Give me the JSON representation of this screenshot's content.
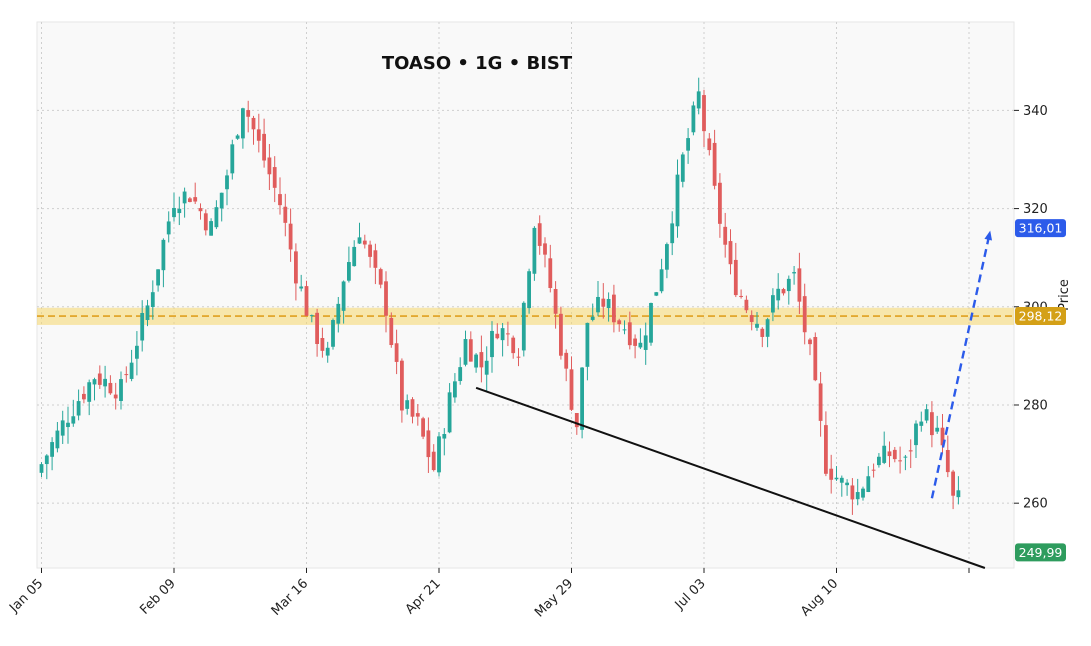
{
  "chart_data": {
    "type": "candlestick",
    "title": "TOASO • 1G • BIST",
    "ylabel": "Price",
    "ylim": [
      246.8,
      358
    ],
    "y_ticks": [
      260,
      280,
      300,
      320,
      340
    ],
    "x_tick_labels": [
      {
        "index": 0,
        "label": "Jan 05"
      },
      {
        "index": 25,
        "label": "Feb 09"
      },
      {
        "index": 50,
        "label": "Mar 16"
      },
      {
        "index": 75,
        "label": "Apr 21"
      },
      {
        "index": 100,
        "label": "May 29"
      },
      {
        "index": 125,
        "label": "Jul 03"
      },
      {
        "index": 150,
        "label": "Aug 10"
      },
      {
        "index": 175,
        "label": ""
      }
    ],
    "grid": true,
    "colors": {
      "up": "#26a69a",
      "down": "#e05c5c",
      "zone": "#f6d76b",
      "level": "#e0a020",
      "trend": "#111111",
      "projection": "#2c5bea"
    },
    "close_path": [
      [
        0,
        268
      ],
      [
        5,
        278
      ],
      [
        10,
        286
      ],
      [
        15,
        283
      ],
      [
        20,
        300
      ],
      [
        25,
        322
      ],
      [
        28,
        323
      ],
      [
        32,
        316
      ],
      [
        35,
        327
      ],
      [
        38,
        342
      ],
      [
        41,
        333
      ],
      [
        45,
        321
      ],
      [
        48,
        307
      ],
      [
        51,
        296
      ],
      [
        54,
        290
      ],
      [
        57,
        306
      ],
      [
        60,
        316
      ],
      [
        62,
        309
      ],
      [
        65,
        300
      ],
      [
        68,
        280
      ],
      [
        71,
        276
      ],
      [
        74,
        267
      ],
      [
        77,
        281
      ],
      [
        80,
        293
      ],
      [
        83,
        288
      ],
      [
        86,
        296
      ],
      [
        90,
        292
      ],
      [
        93,
        318
      ],
      [
        96,
        304
      ],
      [
        99,
        286
      ],
      [
        101,
        276
      ],
      [
        103,
        297
      ],
      [
        106,
        301
      ],
      [
        110,
        296
      ],
      [
        113,
        292
      ],
      [
        116,
        304
      ],
      [
        118,
        314
      ],
      [
        121,
        330
      ],
      [
        124,
        343
      ],
      [
        127,
        323
      ],
      [
        130,
        307
      ],
      [
        133,
        300
      ],
      [
        136,
        296
      ],
      [
        139,
        303
      ],
      [
        142,
        306
      ],
      [
        145,
        290
      ],
      [
        148,
        268
      ],
      [
        151,
        264
      ],
      [
        154,
        262
      ],
      [
        157,
        268
      ],
      [
        160,
        270
      ],
      [
        163,
        268
      ],
      [
        166,
        279
      ],
      [
        169,
        274
      ],
      [
        171,
        266
      ],
      [
        172,
        260.5
      ]
    ],
    "candles_count": 174,
    "zone": {
      "low": 296.3,
      "high": 299.8
    },
    "level": 298.12,
    "trendline": {
      "from": {
        "index": 82,
        "value": 283.5
      },
      "to": {
        "index": 178,
        "value": 246.8
      }
    },
    "projection": {
      "from": {
        "index": 168,
        "value": 261
      },
      "to": {
        "index": 179,
        "value": 315.5
      }
    },
    "price_labels": [
      {
        "text": "316,01",
        "value": 316.01,
        "color": "#2c5bea"
      },
      {
        "text": "298,12",
        "value": 298.12,
        "color": "#d4a017"
      },
      {
        "text": "249,99",
        "value": 249.99,
        "color": "#2e9c5e"
      }
    ]
  }
}
